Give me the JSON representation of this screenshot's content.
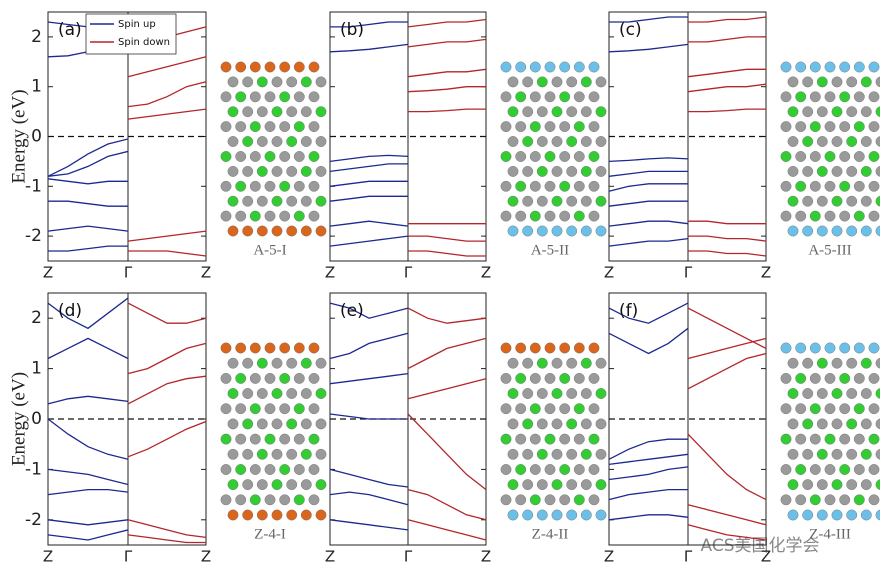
{
  "chart_data": [
    {
      "type": "band",
      "panel_label": "(a)",
      "structure_label": "A-5-I",
      "y_label": "Energy (eV)",
      "categories": [
        "Z",
        "Γ",
        "Z"
      ],
      "x": [
        0,
        0.25,
        0.5,
        0.75,
        1
      ],
      "ylim": [
        -2.5,
        2.5
      ],
      "yticks": [
        -2,
        -1,
        0,
        1,
        2
      ],
      "fermi_level": 0,
      "series": [
        {
          "name": "Spin up",
          "color": "#1c2a8f",
          "bands": [
            [
              1.6,
              1.62,
              1.7,
              1.85,
              2.0
            ],
            [
              2.3,
              2.25,
              2.2,
              2.3,
              2.4
            ],
            [
              -0.8,
              -0.6,
              -0.35,
              -0.15,
              -0.05
            ],
            [
              -0.8,
              -0.75,
              -0.6,
              -0.4,
              -0.3
            ],
            [
              -0.85,
              -0.9,
              -0.95,
              -0.9,
              -0.9
            ],
            [
              -1.3,
              -1.3,
              -1.35,
              -1.4,
              -1.4
            ],
            [
              -1.9,
              -1.85,
              -1.8,
              -1.85,
              -1.9
            ],
            [
              -2.3,
              -2.3,
              -2.25,
              -2.2,
              -2.2
            ]
          ]
        },
        {
          "name": "Spin down",
          "color": "#b3262b",
          "bands": [
            [
              0.35,
              0.4,
              0.45,
              0.5,
              0.55
            ],
            [
              0.6,
              0.65,
              0.8,
              1.0,
              1.1
            ],
            [
              1.2,
              1.3,
              1.4,
              1.5,
              1.6
            ],
            [
              1.8,
              1.9,
              2.0,
              2.1,
              2.2
            ],
            [
              -2.1,
              -2.05,
              -2.0,
              -1.95,
              -1.9
            ],
            [
              -2.3,
              -2.3,
              -2.3,
              -2.35,
              -2.4
            ]
          ]
        }
      ]
    },
    {
      "type": "band",
      "panel_label": "(b)",
      "structure_label": "A-5-II",
      "categories": [
        "Z",
        "Γ",
        "Z"
      ],
      "x": [
        0,
        0.25,
        0.5,
        0.75,
        1
      ],
      "ylim": [
        -2.5,
        2.5
      ],
      "yticks": [
        -2,
        -1,
        0,
        1,
        2
      ],
      "fermi_level": 0,
      "series": [
        {
          "color": "#1c2a8f",
          "bands": [
            [
              1.7,
              1.72,
              1.75,
              1.8,
              1.85
            ],
            [
              2.2,
              2.2,
              2.25,
              2.3,
              2.3
            ],
            [
              -0.5,
              -0.45,
              -0.4,
              -0.38,
              -0.4
            ],
            [
              -0.7,
              -0.65,
              -0.6,
              -0.55,
              -0.55
            ],
            [
              -1.0,
              -0.95,
              -0.9,
              -0.9,
              -0.9
            ],
            [
              -1.3,
              -1.25,
              -1.2,
              -1.2,
              -1.2
            ],
            [
              -1.8,
              -1.75,
              -1.7,
              -1.75,
              -1.8
            ],
            [
              -2.2,
              -2.15,
              -2.1,
              -2.05,
              -2.0
            ]
          ]
        },
        {
          "color": "#b3262b",
          "bands": [
            [
              0.5,
              0.5,
              0.52,
              0.55,
              0.55
            ],
            [
              0.9,
              0.92,
              0.95,
              1.0,
              1.0
            ],
            [
              1.2,
              1.25,
              1.3,
              1.3,
              1.35
            ],
            [
              1.8,
              1.85,
              1.9,
              1.9,
              1.95
            ],
            [
              2.2,
              2.25,
              2.3,
              2.3,
              2.35
            ],
            [
              -1.75,
              -1.75,
              -1.75,
              -1.75,
              -1.75
            ],
            [
              -2.0,
              -2.0,
              -2.05,
              -2.1,
              -2.1
            ],
            [
              -2.3,
              -2.3,
              -2.35,
              -2.4,
              -2.4
            ]
          ]
        }
      ]
    },
    {
      "type": "band",
      "panel_label": "(c)",
      "structure_label": "A-5-III",
      "categories": [
        "Z",
        "Γ",
        "Z"
      ],
      "x": [
        0,
        0.25,
        0.5,
        0.75,
        1
      ],
      "ylim": [
        -2.5,
        2.5
      ],
      "yticks": [
        -2,
        -1,
        0,
        1,
        2
      ],
      "fermi_level": 0,
      "series": [
        {
          "color": "#1c2a8f",
          "bands": [
            [
              1.7,
              1.72,
              1.75,
              1.8,
              1.85
            ],
            [
              2.3,
              2.3,
              2.35,
              2.4,
              2.4
            ],
            [
              -0.5,
              -0.48,
              -0.45,
              -0.43,
              -0.45
            ],
            [
              -0.8,
              -0.75,
              -0.7,
              -0.7,
              -0.7
            ],
            [
              -1.1,
              -1.0,
              -0.95,
              -0.95,
              -0.95
            ],
            [
              -1.4,
              -1.35,
              -1.3,
              -1.3,
              -1.3
            ],
            [
              -1.8,
              -1.75,
              -1.7,
              -1.7,
              -1.75
            ],
            [
              -2.2,
              -2.15,
              -2.1,
              -2.1,
              -2.05
            ]
          ]
        },
        {
          "color": "#b3262b",
          "bands": [
            [
              0.5,
              0.5,
              0.52,
              0.55,
              0.55
            ],
            [
              0.9,
              0.95,
              1.0,
              1.0,
              1.05
            ],
            [
              1.2,
              1.25,
              1.3,
              1.35,
              1.35
            ],
            [
              1.9,
              1.9,
              1.95,
              2.0,
              2.0
            ],
            [
              2.3,
              2.3,
              2.35,
              2.35,
              2.4
            ],
            [
              -1.7,
              -1.7,
              -1.75,
              -1.75,
              -1.75
            ],
            [
              -2.0,
              -2.0,
              -2.05,
              -2.05,
              -2.1
            ],
            [
              -2.3,
              -2.3,
              -2.35,
              -2.35,
              -2.4
            ]
          ]
        }
      ]
    },
    {
      "type": "band",
      "panel_label": "(d)",
      "structure_label": "Z-4-I",
      "y_label": "Energy (eV)",
      "categories": [
        "Z",
        "Γ",
        "Z"
      ],
      "x": [
        0,
        0.25,
        0.5,
        0.75,
        1
      ],
      "ylim": [
        -2.5,
        2.5
      ],
      "yticks": [
        -2,
        -1,
        0,
        1,
        2
      ],
      "fermi_level": 0,
      "series": [
        {
          "color": "#1c2a8f",
          "bands": [
            [
              0,
              -0.3,
              -0.55,
              -0.7,
              -0.8
            ],
            [
              0.3,
              0.4,
              0.45,
              0.4,
              0.35
            ],
            [
              1.2,
              1.4,
              1.6,
              1.4,
              1.2
            ],
            [
              2.3,
              2.0,
              1.8,
              2.1,
              2.4
            ],
            [
              -1.0,
              -1.05,
              -1.1,
              -1.2,
              -1.3
            ],
            [
              -1.5,
              -1.45,
              -1.4,
              -1.4,
              -1.45
            ],
            [
              -2.0,
              -2.05,
              -2.1,
              -2.05,
              -2.0
            ],
            [
              -2.3,
              -2.35,
              -2.4,
              -2.3,
              -2.2
            ]
          ]
        },
        {
          "color": "#b3262b",
          "bands": [
            [
              -0.75,
              -0.6,
              -0.4,
              -0.2,
              -0.05
            ],
            [
              0.3,
              0.5,
              0.7,
              0.8,
              0.85
            ],
            [
              0.9,
              1.0,
              1.2,
              1.4,
              1.5
            ],
            [
              2.3,
              2.1,
              1.9,
              1.9,
              2.0
            ],
            [
              -2.0,
              -2.1,
              -2.2,
              -2.3,
              -2.35
            ],
            [
              -2.3,
              -2.35,
              -2.4,
              -2.45,
              -2.45
            ]
          ]
        }
      ]
    },
    {
      "type": "band",
      "panel_label": "(e)",
      "structure_label": "Z-4-II",
      "categories": [
        "Z",
        "Γ",
        "Z"
      ],
      "x": [
        0,
        0.25,
        0.5,
        0.75,
        1
      ],
      "ylim": [
        -2.5,
        2.5
      ],
      "yticks": [
        -2,
        -1,
        0,
        1,
        2
      ],
      "fermi_level": 0,
      "series": [
        {
          "color": "#1c2a8f",
          "bands": [
            [
              0.1,
              0.05,
              0.0,
              0.0,
              0.0
            ],
            [
              0.7,
              0.75,
              0.8,
              0.85,
              0.9
            ],
            [
              1.2,
              1.3,
              1.5,
              1.6,
              1.7
            ],
            [
              2.3,
              2.2,
              2.0,
              2.1,
              2.2
            ],
            [
              -1.0,
              -1.1,
              -1.2,
              -1.3,
              -1.35
            ],
            [
              -1.5,
              -1.45,
              -1.5,
              -1.6,
              -1.7
            ],
            [
              -2.0,
              -2.05,
              -2.1,
              -2.15,
              -2.2
            ]
          ]
        },
        {
          "color": "#b3262b",
          "bands": [
            [
              0.1,
              -0.3,
              -0.7,
              -1.1,
              -1.4
            ],
            [
              0.4,
              0.5,
              0.6,
              0.7,
              0.8
            ],
            [
              1.0,
              1.2,
              1.4,
              1.5,
              1.6
            ],
            [
              2.2,
              2.0,
              1.9,
              1.95,
              2.0
            ],
            [
              -1.4,
              -1.5,
              -1.7,
              -1.9,
              -2.0
            ],
            [
              -2.0,
              -2.1,
              -2.2,
              -2.3,
              -2.4
            ]
          ]
        }
      ]
    },
    {
      "type": "band",
      "panel_label": "(f)",
      "structure_label": "Z-4-III",
      "categories": [
        "Z",
        "Γ",
        "Z"
      ],
      "x": [
        0,
        0.25,
        0.5,
        0.75,
        1
      ],
      "ylim": [
        -2.5,
        2.5
      ],
      "yticks": [
        -2,
        -1,
        0,
        1,
        2
      ],
      "fermi_level": 0,
      "series": [
        {
          "color": "#1c2a8f",
          "bands": [
            [
              1.7,
              1.5,
              1.3,
              1.5,
              1.8
            ],
            [
              2.2,
              2.0,
              1.9,
              2.1,
              2.3
            ],
            [
              -0.8,
              -0.6,
              -0.45,
              -0.4,
              -0.4
            ],
            [
              -0.9,
              -0.85,
              -0.8,
              -0.75,
              -0.7
            ],
            [
              -1.2,
              -1.15,
              -1.1,
              -1.0,
              -0.95
            ],
            [
              -1.6,
              -1.5,
              -1.45,
              -1.4,
              -1.4
            ],
            [
              -2.0,
              -1.95,
              -1.9,
              -1.9,
              -1.95
            ]
          ]
        },
        {
          "color": "#b3262b",
          "bands": [
            [
              -0.3,
              -0.7,
              -1.1,
              -1.4,
              -1.6
            ],
            [
              0.6,
              0.8,
              1.0,
              1.2,
              1.3
            ],
            [
              1.2,
              1.3,
              1.4,
              1.5,
              1.6
            ],
            [
              2.2,
              2.0,
              1.8,
              1.6,
              1.4
            ],
            [
              -1.7,
              -1.8,
              -1.9,
              -2.0,
              -2.1
            ],
            [
              -2.1,
              -2.2,
              -2.3,
              -2.35,
              -2.4
            ]
          ]
        }
      ]
    }
  ],
  "watermark": "ACS美国化学会"
}
